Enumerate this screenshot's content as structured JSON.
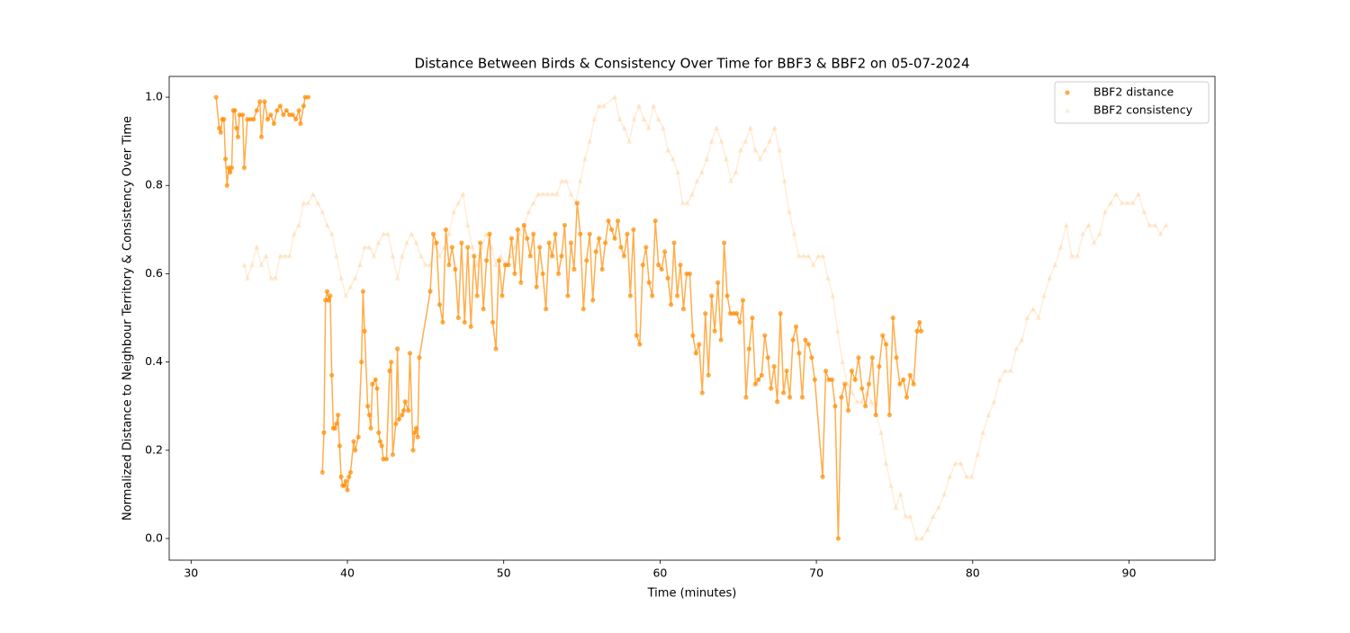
{
  "chart_data": {
    "type": "line",
    "title": "Distance Between Birds & Consistency Over Time for BBF3 & BBF2 on 05-07-2024",
    "xlabel": "Time (minutes)",
    "ylabel": "Normalized Distance to Neighbour Territory & Consistency Over Time",
    "xlim": [
      28.6,
      95.5
    ],
    "ylim": [
      -0.049,
      1.047
    ],
    "xticks": [
      30,
      40,
      50,
      60,
      70,
      80,
      90
    ],
    "yticks": [
      {
        "value": 0,
        "label": "0.0"
      },
      0.2,
      0.4,
      0.6,
      0.8,
      {
        "value": 1,
        "label": "1.0"
      }
    ],
    "legend": "upper right",
    "series": [
      {
        "name": "BBF2 distance",
        "color": "#ff8c00",
        "marker": "circle",
        "alpha": 0.7,
        "x": [
          31.6,
          31.8,
          31.9,
          32.0,
          32.1,
          32.2,
          32.3,
          32.4,
          32.5,
          32.6,
          32.7,
          32.8,
          32.9,
          33.0,
          33.1,
          33.3,
          33.4,
          33.6,
          33.8,
          34.0,
          34.2,
          34.4,
          34.5,
          34.7,
          34.9,
          35.1,
          35.3,
          35.5,
          35.7,
          35.9,
          36.1,
          36.3,
          36.5,
          36.7,
          36.9,
          37.0,
          37.2,
          37.3,
          37.5,
          37.9,
          38.4,
          38.5,
          38.6,
          38.7,
          38.8,
          38.9,
          39.0,
          39.1,
          39.2,
          39.3,
          39.4,
          39.5,
          39.6,
          39.7,
          39.8,
          39.9,
          40.0,
          40.1,
          40.2,
          40.4,
          40.5,
          40.7,
          40.9,
          41.0,
          41.1,
          41.3,
          41.4,
          41.5,
          41.6,
          41.8,
          41.9,
          42.0,
          42.1,
          42.2,
          42.3,
          42.5,
          42.7,
          42.8,
          42.9,
          43.1,
          43.2,
          43.3,
          43.5,
          43.6,
          43.7,
          43.9,
          44.0,
          44.2,
          44.3,
          44.4,
          44.5,
          44.6,
          45.3,
          45.5,
          45.7,
          45.9,
          46.1,
          46.3,
          46.5,
          46.7,
          46.9,
          47.1,
          47.3,
          47.5,
          47.7,
          47.9,
          48.1,
          48.3,
          48.5,
          48.7,
          48.9,
          49.1,
          49.3,
          49.5,
          49.7,
          49.9,
          50.1,
          50.3,
          50.5,
          50.7,
          50.9,
          51.1,
          51.3,
          51.5,
          51.7,
          51.9,
          52.1,
          52.3,
          52.5,
          52.7,
          52.9,
          53.1,
          53.3,
          53.5,
          53.7,
          53.9,
          54.1,
          54.3,
          54.5,
          54.7,
          54.9,
          55.1,
          55.3,
          55.5,
          55.7,
          55.9,
          56.1,
          56.3,
          56.5,
          56.7,
          56.9,
          57.1,
          57.3,
          57.5,
          57.7,
          57.9,
          58.1,
          58.3,
          58.5,
          58.7,
          58.9,
          59.1,
          59.3,
          59.5,
          59.7,
          59.9,
          60.1,
          60.3,
          60.5,
          60.7,
          60.9,
          61.1,
          61.3,
          61.5,
          61.7,
          61.9,
          62.1,
          62.3,
          62.5,
          62.7,
          62.9,
          63.1,
          63.3,
          63.5,
          63.7,
          63.9,
          64.1,
          64.3,
          64.5,
          64.7,
          64.9,
          65.1,
          65.3,
          65.5,
          65.7,
          65.9,
          66.1,
          66.3,
          66.5,
          66.7,
          66.9,
          67.1,
          67.3,
          67.5,
          67.7,
          67.9,
          68.1,
          68.3,
          68.5,
          68.7,
          68.9,
          69.1,
          69.3,
          69.5,
          69.7,
          69.9,
          70.4,
          70.6,
          70.8,
          71.0,
          71.2,
          71.4,
          71.6,
          71.82,
          72.04,
          72.26,
          72.48,
          72.7,
          72.92,
          73.14,
          73.36,
          73.58,
          73.8,
          74.02,
          74.24,
          74.46,
          74.68,
          74.9,
          75.12,
          75.34,
          75.56,
          75.78,
          76.0,
          76.22,
          76.44,
          76.6,
          76.7
        ],
        "values": [
          1.0,
          0.93,
          0.92,
          0.95,
          0.95,
          0.86,
          0.8,
          0.84,
          0.83,
          0.84,
          0.97,
          0.97,
          0.93,
          0.91,
          0.96,
          0.96,
          0.84,
          0.95,
          0.95,
          0.95,
          0.97,
          0.99,
          0.91,
          0.99,
          0.95,
          0.96,
          0.94,
          0.97,
          0.98,
          0.96,
          0.97,
          0.96,
          0.96,
          0.95,
          0.97,
          0.94,
          0.98,
          1.0,
          1.0,
          null,
          0.15,
          0.24,
          0.54,
          0.56,
          0.54,
          0.55,
          0.37,
          0.25,
          0.25,
          0.26,
          0.28,
          0.21,
          0.14,
          0.12,
          0.12,
          0.13,
          0.11,
          0.14,
          0.15,
          0.22,
          0.2,
          0.23,
          0.4,
          0.56,
          0.47,
          0.3,
          0.28,
          0.25,
          0.35,
          0.36,
          0.34,
          0.24,
          0.22,
          0.21,
          0.18,
          0.18,
          0.38,
          0.4,
          0.19,
          0.26,
          0.43,
          0.27,
          0.28,
          0.29,
          0.31,
          0.29,
          0.42,
          0.2,
          0.24,
          0.25,
          0.23,
          0.41,
          0.56,
          0.69,
          0.67,
          0.53,
          0.49,
          0.7,
          0.62,
          0.66,
          0.61,
          0.5,
          0.67,
          0.49,
          0.66,
          0.48,
          0.64,
          0.55,
          0.67,
          0.52,
          0.63,
          0.69,
          0.49,
          0.43,
          0.63,
          0.55,
          0.62,
          0.62,
          0.68,
          0.6,
          0.7,
          0.58,
          0.71,
          0.68,
          0.64,
          0.69,
          0.57,
          0.66,
          0.6,
          0.52,
          0.67,
          0.64,
          0.69,
          0.6,
          0.64,
          0.71,
          0.55,
          0.67,
          0.61,
          0.76,
          0.69,
          0.52,
          0.63,
          0.69,
          0.54,
          0.65,
          0.68,
          0.61,
          0.67,
          0.72,
          0.7,
          0.68,
          0.72,
          0.66,
          0.64,
          0.69,
          0.55,
          0.7,
          0.46,
          0.44,
          0.62,
          0.66,
          0.58,
          0.55,
          0.72,
          0.62,
          0.61,
          0.65,
          0.59,
          0.53,
          0.67,
          0.55,
          0.62,
          0.52,
          0.6,
          0.6,
          0.46,
          0.42,
          0.44,
          0.33,
          0.51,
          0.37,
          0.55,
          0.47,
          0.58,
          0.45,
          0.67,
          0.55,
          0.51,
          0.51,
          0.51,
          0.49,
          0.54,
          0.32,
          0.43,
          0.5,
          0.35,
          0.36,
          0.37,
          0.46,
          0.41,
          0.34,
          0.39,
          0.31,
          0.51,
          0.33,
          0.38,
          0.32,
          0.45,
          0.48,
          0.42,
          0.32,
          0.45,
          0.44,
          0.41,
          0.36,
          0.14,
          0.38,
          0.36,
          0.36,
          0.3,
          0.0,
          0.32,
          0.35,
          0.29,
          0.38,
          0.36,
          0.41,
          0.34,
          0.3,
          0.35,
          0.41,
          0.28,
          0.39,
          0.46,
          0.44,
          0.28,
          0.5,
          0.41,
          0.35,
          0.36,
          0.32,
          0.37,
          0.35,
          0.47,
          0.49,
          0.47
        ]
      },
      {
        "name": "BBF2 consistency",
        "color": "#ff8c00",
        "marker": "triangle",
        "alpha": 0.15,
        "x": [
          33.4,
          33.6,
          33.9,
          34.2,
          34.5,
          34.8,
          35.1,
          35.4,
          35.7,
          36.0,
          36.3,
          36.6,
          36.9,
          37.2,
          37.5,
          37.8,
          38.1,
          38.4,
          38.7,
          39.0,
          39.3,
          39.6,
          39.9,
          40.2,
          40.5,
          40.8,
          41.1,
          41.4,
          41.7,
          42.0,
          42.3,
          42.6,
          42.9,
          43.2,
          43.5,
          43.8,
          44.1,
          44.4,
          44.7,
          45.0,
          45.3,
          45.6,
          45.9,
          46.2,
          46.5,
          46.8,
          47.1,
          47.4,
          47.7,
          48.0,
          48.3,
          48.6,
          48.9,
          49.2,
          49.5,
          49.8,
          50.1,
          50.4,
          50.7,
          51.0,
          51.3,
          51.6,
          51.9,
          52.2,
          52.5,
          52.8,
          53.1,
          53.4,
          53.7,
          54.0,
          54.3,
          54.6,
          54.9,
          55.2,
          55.5,
          55.8,
          56.1,
          56.4,
          57.1,
          57.41,
          57.72,
          58.03,
          58.34,
          58.65,
          58.96,
          59.27,
          59.58,
          59.89,
          60.2,
          60.51,
          60.82,
          61.13,
          61.44,
          61.75,
          62.06,
          62.37,
          62.68,
          62.99,
          63.3,
          63.61,
          63.92,
          64.23,
          64.54,
          64.85,
          65.16,
          65.47,
          65.78,
          66.09,
          66.4,
          66.71,
          67.02,
          67.33,
          67.64,
          67.95,
          68.26,
          68.57,
          68.88,
          69.19,
          69.5,
          69.81,
          70.12,
          70.43,
          70.74,
          71.05,
          71.36,
          71.67,
          71.98,
          72.29,
          72.6,
          72.91,
          73.22,
          73.53,
          73.84,
          74.15,
          74.46,
          74.77,
          75.08,
          75.39,
          75.7,
          76.01,
          76.4,
          76.76,
          77.11,
          77.47,
          77.82,
          78.18,
          78.53,
          78.89,
          79.24,
          79.6,
          79.95,
          80.31,
          80.66,
          81.02,
          81.37,
          81.73,
          82.08,
          82.44,
          82.79,
          83.15,
          83.5,
          83.86,
          84.21,
          84.57,
          84.92,
          85.28,
          85.63,
          85.99,
          86.34,
          86.7,
          87.05,
          87.41,
          87.76,
          88.12,
          88.47,
          88.83,
          89.18,
          89.54,
          89.89,
          90.25,
          90.6,
          90.96,
          91.31,
          91.67,
          92.02,
          92.38
        ],
        "values": [
          0.62,
          0.59,
          0.62,
          0.66,
          0.62,
          0.64,
          0.59,
          0.59,
          0.64,
          0.64,
          0.64,
          0.69,
          0.71,
          0.76,
          0.76,
          0.78,
          0.76,
          0.74,
          0.71,
          0.69,
          0.64,
          0.59,
          0.55,
          0.57,
          0.59,
          0.62,
          0.66,
          0.66,
          0.64,
          0.67,
          0.69,
          0.69,
          0.64,
          0.59,
          0.64,
          0.67,
          0.69,
          0.67,
          0.64,
          0.62,
          0.62,
          0.67,
          0.64,
          0.66,
          0.69,
          0.74,
          0.76,
          0.78,
          0.71,
          0.66,
          0.62,
          0.66,
          0.69,
          0.66,
          0.62,
          0.64,
          0.62,
          0.64,
          0.66,
          0.69,
          0.71,
          0.74,
          0.76,
          0.78,
          0.78,
          0.78,
          0.78,
          0.78,
          0.81,
          0.81,
          0.78,
          0.76,
          0.81,
          0.86,
          0.9,
          0.95,
          0.98,
          0.98,
          1.0,
          0.95,
          0.93,
          0.9,
          0.95,
          0.98,
          0.95,
          0.93,
          0.98,
          0.95,
          0.93,
          0.88,
          0.86,
          0.83,
          0.76,
          0.76,
          0.78,
          0.81,
          0.83,
          0.86,
          0.9,
          0.93,
          0.9,
          0.86,
          0.81,
          0.83,
          0.88,
          0.9,
          0.93,
          0.88,
          0.86,
          0.88,
          0.9,
          0.93,
          0.88,
          0.81,
          0.74,
          0.69,
          0.64,
          0.64,
          0.64,
          0.62,
          0.64,
          0.64,
          0.59,
          0.55,
          0.47,
          0.4,
          0.35,
          0.33,
          0.31,
          0.31,
          0.33,
          0.31,
          0.28,
          0.24,
          0.17,
          0.12,
          0.07,
          0.1,
          0.05,
          0.05,
          0.0,
          0.0,
          0.02,
          0.05,
          0.07,
          0.1,
          0.14,
          0.17,
          0.17,
          0.14,
          0.14,
          0.19,
          0.24,
          0.28,
          0.31,
          0.36,
          0.38,
          0.38,
          0.43,
          0.45,
          0.5,
          0.52,
          0.5,
          0.55,
          0.59,
          0.62,
          0.66,
          0.71,
          0.64,
          0.64,
          0.69,
          0.71,
          0.67,
          0.69,
          0.74,
          0.76,
          0.78,
          0.76,
          0.76,
          0.76,
          0.78,
          0.74,
          0.71,
          0.71,
          0.69,
          0.71
        ]
      }
    ]
  }
}
